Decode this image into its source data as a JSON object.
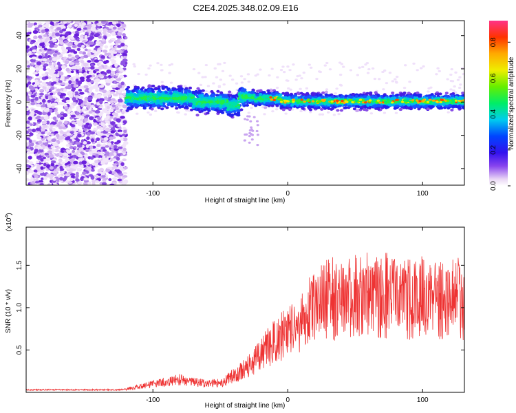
{
  "chart_data": [
    {
      "type": "heatmap",
      "title": "C2E4.2025.348.02.09.E16",
      "xlabel": "Height of straight line (km)",
      "ylabel": "Frequency (Hz)",
      "xlim": [
        -194,
        131
      ],
      "ylim": [
        -50,
        49
      ],
      "xticks": [
        -100,
        0,
        100
      ],
      "xtick_labels": [
        "-100",
        "0",
        "100"
      ],
      "yticks": [
        -40,
        -20,
        0,
        20,
        40
      ],
      "ytick_labels": [
        "-40",
        "-20",
        "0",
        "20",
        "40"
      ],
      "colorbar": {
        "label": "Normalized spectral amplitude",
        "range": [
          0.0,
          0.92
        ],
        "ticks": [
          0.0,
          0.2,
          0.4,
          0.6,
          0.8
        ],
        "tick_labels": [
          "0.0",
          "0.2",
          "0.4",
          "0.6",
          "0.8"
        ]
      },
      "description_regions": {
        "noise_region_x": [
          -194,
          -120
        ],
        "signal_band_center_hz": 0,
        "signal_band_width_hz": 10
      }
    },
    {
      "type": "line",
      "title": "",
      "xlabel": "Height of straight line (km)",
      "ylabel": "SNR (10 * v/v)",
      "exponent_label": "(x10",
      "exponent_power": "4",
      "exponent_close": ")",
      "xlim": [
        -194,
        131
      ],
      "ylim": [
        0,
        1.95
      ],
      "xticks": [
        -100,
        0,
        100
      ],
      "xtick_labels": [
        "-100",
        "0",
        "100"
      ],
      "yticks": [
        0.5,
        1.0,
        1.5
      ],
      "ytick_labels": [
        "0.5",
        "1.0",
        "1.5"
      ],
      "series_color": "#ee3333",
      "trend": {
        "x": [
          -194,
          -125,
          -115,
          -100,
          -80,
          -60,
          -48,
          -40,
          -30,
          -20,
          -10,
          0,
          10,
          20,
          30,
          50,
          70,
          90,
          110,
          131
        ],
        "y": [
          0.03,
          0.03,
          0.05,
          0.1,
          0.15,
          0.1,
          0.12,
          0.2,
          0.3,
          0.45,
          0.6,
          0.7,
          0.85,
          1.0,
          1.1,
          1.13,
          1.15,
          1.12,
          1.1,
          1.12
        ]
      }
    }
  ]
}
